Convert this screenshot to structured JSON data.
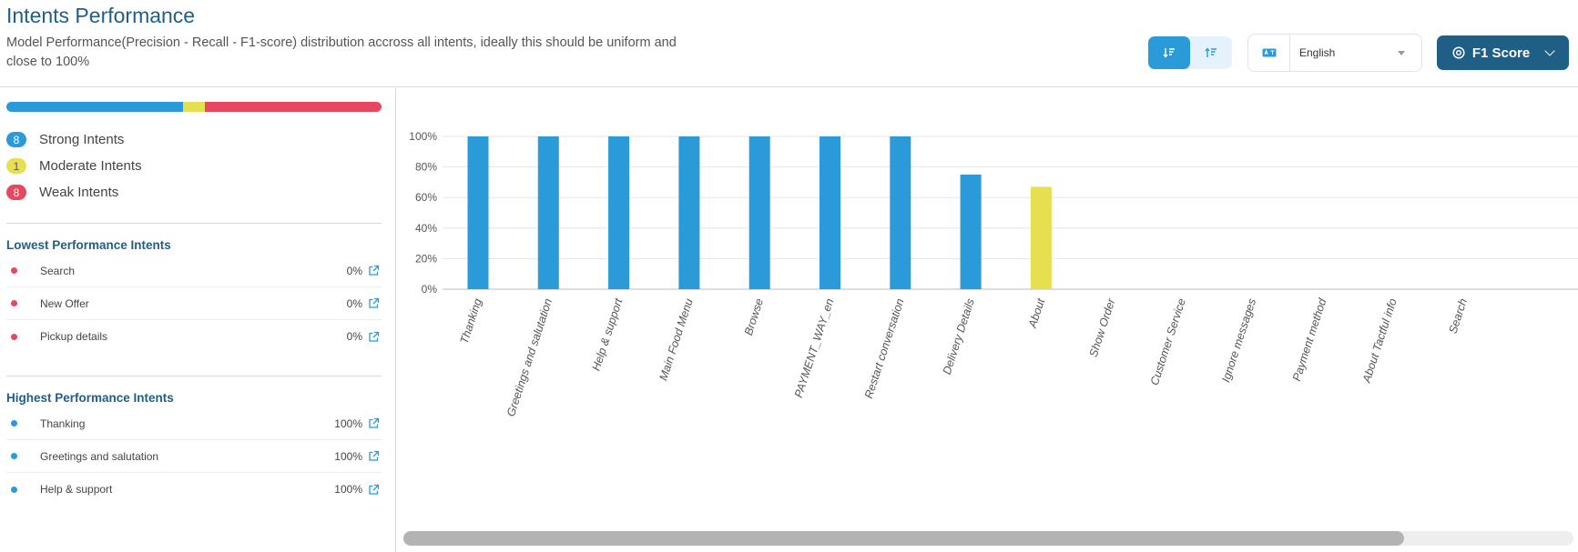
{
  "header": {
    "title": "Intents Performance",
    "subtitle": "Model Performance(Precision - Recall - F1-score) distribution accross all intents, ideally this should be uniform and close to 100%"
  },
  "controls": {
    "sort_desc_icon": "sort-descending-icon",
    "sort_asc_icon": "sort-ascending-icon",
    "language_icon": "translate-icon",
    "language": "English",
    "metric": "F1 Score",
    "metric_icon": "target-icon"
  },
  "colors": {
    "strong": "#2a9ad8",
    "moderate": "#e6e050",
    "weak": "#e8475f",
    "primary": "#1f5f86"
  },
  "summary": {
    "strong": {
      "count": "8",
      "label": "Strong Intents"
    },
    "moderate": {
      "count": "1",
      "label": "Moderate Intents"
    },
    "weak": {
      "count": "8",
      "label": "Weak Intents"
    }
  },
  "lowest": {
    "title": "Lowest Performance Intents",
    "items": [
      {
        "name": "Search",
        "value": "0%"
      },
      {
        "name": "New Offer",
        "value": "0%"
      },
      {
        "name": "Pickup details",
        "value": "0%"
      }
    ]
  },
  "highest": {
    "title": "Highest Performance Intents",
    "items": [
      {
        "name": "Thanking",
        "value": "100%"
      },
      {
        "name": "Greetings and salutation",
        "value": "100%"
      },
      {
        "name": "Help & support",
        "value": "100%"
      }
    ]
  },
  "chart_data": {
    "type": "bar",
    "title": "",
    "xlabel": "",
    "ylabel": "",
    "ylim": [
      0,
      100
    ],
    "yticks": [
      "0%",
      "20%",
      "40%",
      "60%",
      "80%",
      "100%"
    ],
    "grid": true,
    "categories": [
      "Thanking",
      "Greetings and salutation",
      "Help & support",
      "Main Food Menu",
      "Browse",
      "PAYMENT_WAY_en",
      "Restart conversation",
      "Delivery Details",
      "About",
      "Show Order",
      "Customer Service",
      "Ignore messages",
      "Payment method",
      "About Tactful info",
      "Search"
    ],
    "values": [
      100,
      100,
      100,
      100,
      100,
      100,
      100,
      75,
      67,
      0,
      0,
      0,
      0,
      0,
      0
    ],
    "bar_classes": [
      "strong",
      "strong",
      "strong",
      "strong",
      "strong",
      "strong",
      "strong",
      "strong",
      "moderate",
      "weak",
      "weak",
      "weak",
      "weak",
      "weak",
      "weak"
    ]
  },
  "scrollbar": {
    "position": 0,
    "visible_fraction": 0.855
  }
}
